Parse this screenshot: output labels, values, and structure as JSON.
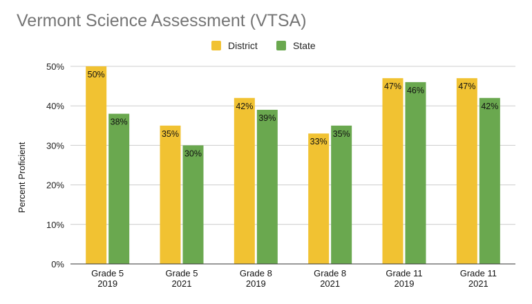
{
  "chart_data": {
    "type": "bar",
    "title": "Vermont Science Assessment (VTSA)",
    "ylabel": "Percent Proficient",
    "xlabel": "",
    "categories": [
      [
        "Grade 5",
        "2019"
      ],
      [
        "Grade 5",
        "2021"
      ],
      [
        "Grade 8",
        "2019"
      ],
      [
        "Grade 8",
        "2021"
      ],
      [
        "Grade 11",
        "2019"
      ],
      [
        "Grade 11",
        "2021"
      ]
    ],
    "series": [
      {
        "name": "District",
        "color": "#F1C232",
        "values": [
          50,
          35,
          42,
          33,
          47,
          47
        ],
        "labels": [
          "50%",
          "35%",
          "42%",
          "33%",
          "47%",
          "47%"
        ]
      },
      {
        "name": "State",
        "color": "#6AA84F",
        "values": [
          38,
          30,
          39,
          35,
          46,
          42
        ],
        "labels": [
          "38%",
          "30%",
          "39%",
          "35%",
          "46%",
          "42%"
        ]
      }
    ],
    "ylim": [
      0,
      50
    ],
    "yticks": [
      0,
      10,
      20,
      30,
      40,
      50
    ],
    "ytick_labels": [
      "0%",
      "10%",
      "20%",
      "30%",
      "40%",
      "50%"
    ],
    "grid": true,
    "legend_position": "top-center"
  }
}
